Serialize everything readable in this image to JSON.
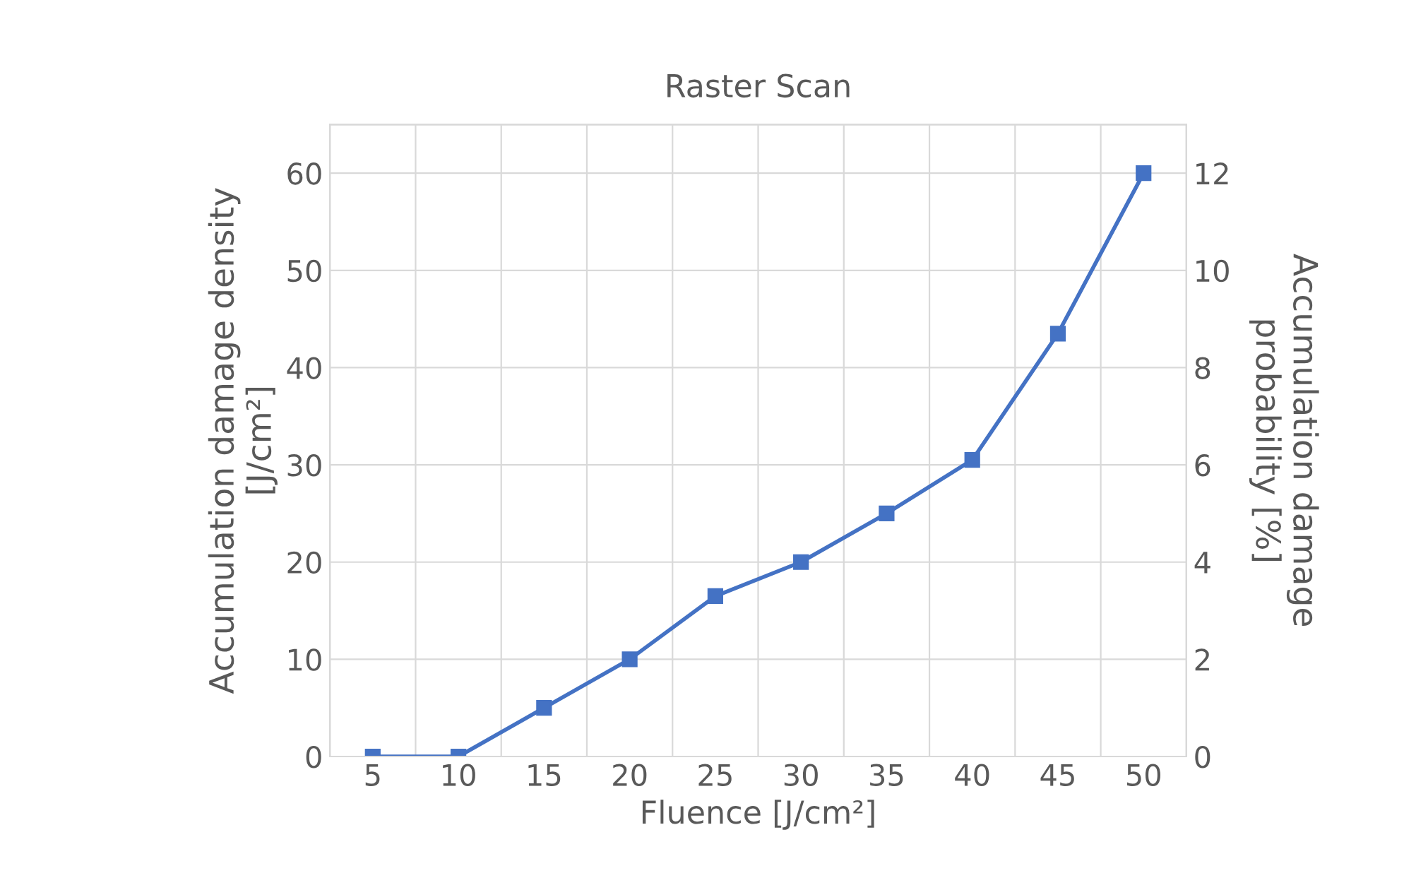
{
  "chart_data": {
    "type": "line",
    "title": "Raster Scan",
    "xlabel": "Fluence [J/cm²]",
    "ylabel": "Accumulation damage density\n[J/cm²]",
    "y2label": "Accumulation damage\nprobability [%]",
    "categories": [
      "5",
      "10",
      "15",
      "20",
      "25",
      "30",
      "35",
      "40",
      "45",
      "50"
    ],
    "series": [
      {
        "color": "#4472c4",
        "values": [
          0,
          0,
          5,
          10,
          16.5,
          20,
          25,
          30.5,
          43.5,
          60
        ]
      }
    ],
    "ylim": [
      0,
      65
    ],
    "yticks": [
      0,
      10,
      20,
      30,
      40,
      50,
      60
    ],
    "y2lim": [
      0,
      13
    ],
    "y2ticks": [
      0,
      2,
      4,
      6,
      8,
      10,
      12
    ],
    "grid": true,
    "marker": "square",
    "line_style": "solid"
  }
}
